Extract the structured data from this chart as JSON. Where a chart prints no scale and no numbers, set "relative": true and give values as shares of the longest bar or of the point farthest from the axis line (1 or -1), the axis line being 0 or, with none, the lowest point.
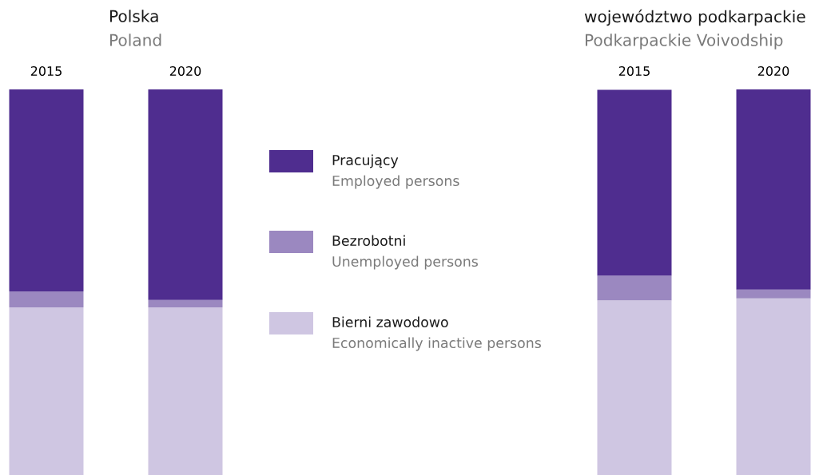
{
  "chart_data": [
    {
      "type": "bar",
      "title": "Polska",
      "subtitle": "Poland",
      "stacked": true,
      "relative": true,
      "legend": "right",
      "categories": [
        "2015",
        "2020"
      ],
      "series": [
        {
          "name": "Bierni zawodowo\nEconomically inactive persons",
          "color": "#cfc6e2",
          "values": [
            0.435,
            0.435
          ]
        },
        {
          "name": "Bezrobotni\nUnemployed persons",
          "color": "#9b88c0",
          "values": [
            0.041,
            0.019
          ]
        },
        {
          "name": "Pracujący\nEmployed persons",
          "color": "#4f2d8f",
          "values": [
            0.524,
            0.546
          ]
        }
      ]
    },
    {
      "type": "bar",
      "title": "województwo podkarpackie",
      "subtitle": "Podkarpackie Voivodship",
      "stacked": true,
      "relative": true,
      "categories": [
        "2015",
        "2020"
      ],
      "series": [
        {
          "color": "#cfc6e2",
          "values": [
            0.453,
            0.458
          ]
        },
        {
          "color": "#9b88c0",
          "values": [
            0.064,
            0.023
          ]
        },
        {
          "color": "#4f2d8f",
          "values": [
            0.482,
            0.519
          ]
        }
      ]
    }
  ]
}
